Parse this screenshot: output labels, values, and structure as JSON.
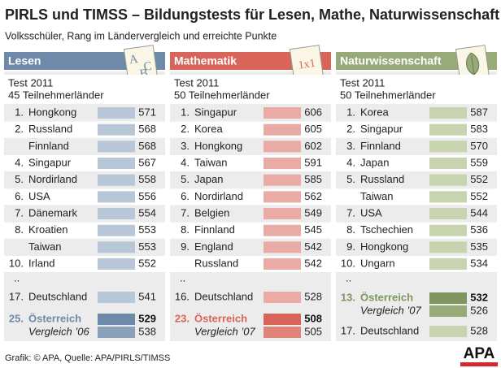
{
  "title": "PIRLS und TIMSS – Bildungstests für Lesen, Mathe, Naturwissenschaft",
  "subtitle": "Volksschüler, Rang im Ländervergleich und erreichte Punkte",
  "panels": [
    {
      "title": "Lesen",
      "header_color": "#6f8aa8",
      "bar_color": "#b8c7d7",
      "icon_text": [
        "A",
        "C",
        "B"
      ],
      "test": "Test 2011",
      "participants": "45 Teilnehmerländer",
      "rows": [
        {
          "rank": "1.",
          "name": "Hongkong",
          "value": 571
        },
        {
          "rank": "2.",
          "name": "Russland",
          "value": 568
        },
        {
          "name": "Finnland",
          "value": 568
        },
        {
          "rank": "4.",
          "name": "Singapur",
          "value": 567
        },
        {
          "rank": "5.",
          "name": "Nordirland",
          "value": 558
        },
        {
          "rank": "6.",
          "name": "USA",
          "value": 556
        },
        {
          "rank": "7.",
          "name": "Dänemark",
          "value": 554
        },
        {
          "rank": "8.",
          "name": "Kroatien",
          "value": 553
        },
        {
          "name": "Taiwan",
          "value": 553
        },
        {
          "rank": "10.",
          "name": "Irland",
          "value": 552
        }
      ],
      "gap": "..",
      "bottom": [
        {
          "rank": "17.",
          "name": "Deutschland",
          "value": 541
        },
        {
          "rank": "25.",
          "name": "Österreich",
          "value": 529,
          "color": "#6f8aa8"
        },
        {
          "name": "Vergleich ’06",
          "value": 538,
          "color": "#8aa1ba"
        }
      ]
    },
    {
      "title": "Mathematik",
      "header_color": "#d9655a",
      "bar_color": "#eaaba6",
      "icon_text": [
        "1x1"
      ],
      "test": "Test 2011",
      "participants": "50 Teilnehmerländer",
      "rows": [
        {
          "rank": "1.",
          "name": "Singapur",
          "value": 606
        },
        {
          "rank": "2.",
          "name": "Korea",
          "value": 605
        },
        {
          "rank": "3.",
          "name": "Hongkong",
          "value": 602
        },
        {
          "rank": "4.",
          "name": "Taiwan",
          "value": 591
        },
        {
          "rank": "5.",
          "name": "Japan",
          "value": 585
        },
        {
          "rank": "6.",
          "name": "Nordirland",
          "value": 562
        },
        {
          "rank": "7.",
          "name": "Belgien",
          "value": 549
        },
        {
          "rank": "8.",
          "name": "Finnland",
          "value": 545
        },
        {
          "rank": "9.",
          "name": "England",
          "value": 542
        },
        {
          "name": "Russland",
          "value": 542
        }
      ],
      "gap": "..",
      "bottom": [
        {
          "rank": "16.",
          "name": "Deutschland",
          "value": 528
        },
        {
          "rank": "23.",
          "name": "Österreich",
          "value": 508,
          "color": "#d9655a"
        },
        {
          "name": "Vergleich ’07",
          "value": 505,
          "color": "#e0837a"
        }
      ]
    },
    {
      "title": "Naturwissenschaft",
      "header_color": "#98aa78",
      "bar_color": "#c8d3b0",
      "test": "Test 2011",
      "participants": "50 Teilnehmerländer",
      "rows": [
        {
          "rank": "1.",
          "name": "Korea",
          "value": 587
        },
        {
          "rank": "2.",
          "name": "Singapur",
          "value": 583
        },
        {
          "rank": "3.",
          "name": "Finnland",
          "value": 570
        },
        {
          "rank": "4.",
          "name": "Japan",
          "value": 559
        },
        {
          "rank": "5.",
          "name": "Russland",
          "value": 552
        },
        {
          "name": "Taiwan",
          "value": 552
        },
        {
          "rank": "7.",
          "name": "USA",
          "value": 544
        },
        {
          "rank": "8.",
          "name": "Tschechien",
          "value": 536
        },
        {
          "rank": "9.",
          "name": "Hongkong",
          "value": 535
        },
        {
          "rank": "10.",
          "name": "Ungarn",
          "value": 534
        }
      ],
      "gap": "..",
      "bottom": [
        {
          "rank": "13.",
          "name": "Österreich",
          "value": 532,
          "color": "#7e955f"
        },
        {
          "name": "Vergleich ’07",
          "value": 526,
          "color": "#98aa78"
        },
        {
          "rank": "17.",
          "name": "Deutschland",
          "value": 528
        }
      ]
    }
  ],
  "footer": "Grafik: © APA, Quelle: APA/PIRLS/TIMSS",
  "logo": "APA"
}
